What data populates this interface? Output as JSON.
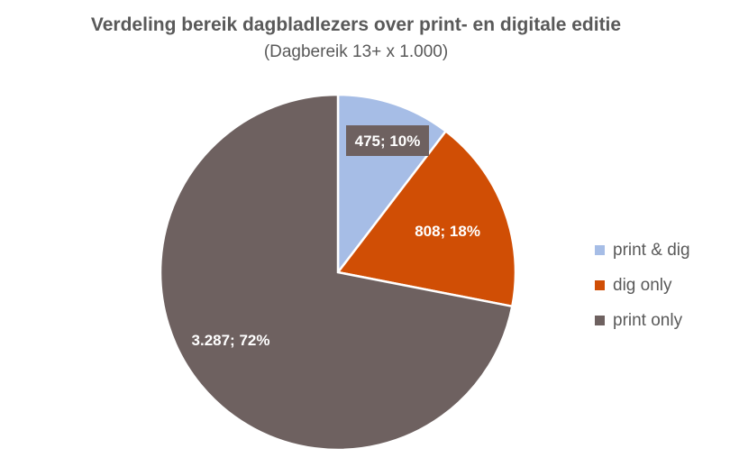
{
  "chart_data": {
    "type": "pie",
    "title": "Verdeling bereik dagbladlezers over print- en digitale editie",
    "subtitle": "(Dagbereik 13+ x 1.000)",
    "slices": [
      {
        "name": "print & dig",
        "value": 475,
        "percent": 10,
        "label": "475; 10%",
        "color": "#a6bde6"
      },
      {
        "name": "dig only",
        "value": 808,
        "percent": 18,
        "label": "808; 18%",
        "color": "#d04e05"
      },
      {
        "name": "print only",
        "value": 3287,
        "percent": 72,
        "label": "3.287; 72%",
        "color": "#6e6160"
      }
    ],
    "legend_position": "right"
  }
}
